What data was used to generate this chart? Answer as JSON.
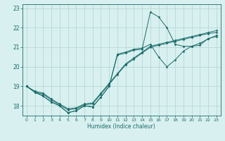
{
  "title": "",
  "xlabel": "Humidex (Indice chaleur)",
  "ylabel": "",
  "xlim": [
    -0.5,
    23.5
  ],
  "ylim": [
    17.5,
    23.2
  ],
  "yticks": [
    18,
    19,
    20,
    21,
    22,
    23
  ],
  "xticks": [
    0,
    1,
    2,
    3,
    4,
    5,
    6,
    7,
    8,
    9,
    10,
    11,
    12,
    13,
    14,
    15,
    16,
    17,
    18,
    19,
    20,
    21,
    22,
    23
  ],
  "background_color": "#d8f0ef",
  "grid_color": "#b2d4d2",
  "line_color": "#1a6b6b",
  "series": [
    {
      "x": [
        0,
        1,
        2,
        3,
        4,
        5,
        6,
        7,
        8,
        9,
        10,
        11,
        12,
        13,
        14,
        15,
        16,
        17,
        18,
        19,
        20,
        21,
        22,
        23
      ],
      "y": [
        19.0,
        18.7,
        18.5,
        18.2,
        18.0,
        17.65,
        17.75,
        18.0,
        17.95,
        18.45,
        19.0,
        20.6,
        20.7,
        20.85,
        20.9,
        22.8,
        22.55,
        22.0,
        21.15,
        21.05,
        21.05,
        21.1,
        21.45,
        21.55
      ]
    },
    {
      "x": [
        0,
        1,
        2,
        3,
        4,
        5,
        6,
        7,
        8,
        9,
        10,
        11,
        12,
        13,
        14,
        15,
        16,
        17,
        18,
        19,
        20,
        21,
        22,
        23
      ],
      "y": [
        19.0,
        18.7,
        18.5,
        18.2,
        18.0,
        17.65,
        17.75,
        18.0,
        17.95,
        18.45,
        19.0,
        20.65,
        20.75,
        20.9,
        20.95,
        21.15,
        20.5,
        20.0,
        20.35,
        20.8,
        21.05,
        21.2,
        21.42,
        21.6
      ]
    },
    {
      "x": [
        0,
        1,
        2,
        3,
        4,
        5,
        6,
        7,
        8,
        9,
        10,
        11,
        12,
        13,
        14,
        15,
        16,
        17,
        18,
        19,
        20,
        21,
        22,
        23
      ],
      "y": [
        19.0,
        18.7,
        18.6,
        18.3,
        18.05,
        17.8,
        17.85,
        18.05,
        18.1,
        18.6,
        19.1,
        19.6,
        20.1,
        20.4,
        20.7,
        21.0,
        21.1,
        21.2,
        21.3,
        21.4,
        21.5,
        21.6,
        21.7,
        21.75
      ]
    },
    {
      "x": [
        0,
        1,
        2,
        3,
        4,
        5,
        6,
        7,
        8,
        9,
        10,
        11,
        12,
        13,
        14,
        15,
        16,
        17,
        18,
        19,
        20,
        21,
        22,
        23
      ],
      "y": [
        19.0,
        18.75,
        18.65,
        18.35,
        18.1,
        17.85,
        17.9,
        18.1,
        18.15,
        18.65,
        19.15,
        19.65,
        20.15,
        20.45,
        20.75,
        21.05,
        21.15,
        21.25,
        21.35,
        21.45,
        21.55,
        21.65,
        21.75,
        21.85
      ]
    }
  ]
}
